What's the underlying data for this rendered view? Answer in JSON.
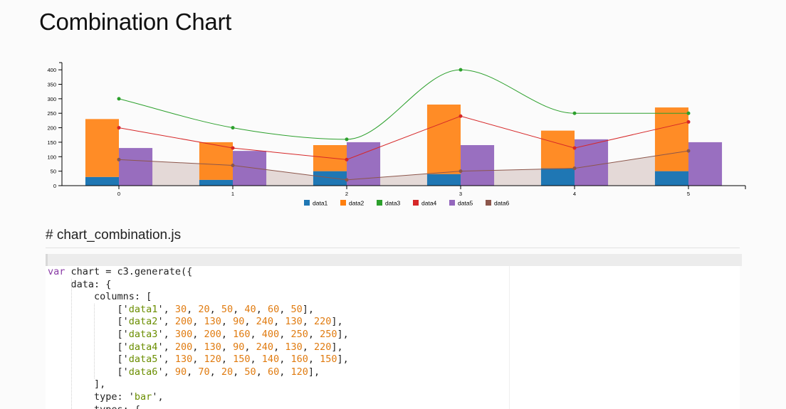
{
  "page": {
    "title": "Combination Chart",
    "section_heading": "# chart_combination.js"
  },
  "chart_data": {
    "type": "bar",
    "x": [
      0,
      1,
      2,
      3,
      4,
      5
    ],
    "ylim": [
      0,
      420
    ],
    "yticks": [
      0,
      50,
      100,
      150,
      200,
      250,
      300,
      350,
      400
    ],
    "grid": false,
    "legend_position": "bottom",
    "series": [
      {
        "name": "data1",
        "render": "bar",
        "color": "#1f77b4",
        "values": [
          30,
          20,
          50,
          40,
          60,
          50
        ]
      },
      {
        "name": "data2",
        "render": "bar",
        "color": "#ff7f0e",
        "values": [
          200,
          130,
          90,
          240,
          130,
          220
        ]
      },
      {
        "name": "data3",
        "render": "spline",
        "color": "#2ca02c",
        "values": [
          300,
          200,
          160,
          400,
          250,
          250
        ]
      },
      {
        "name": "data4",
        "render": "line",
        "color": "#d62728",
        "values": [
          200,
          130,
          90,
          240,
          130,
          220
        ]
      },
      {
        "name": "data5",
        "render": "bar",
        "color": "#9467bd",
        "values": [
          130,
          120,
          150,
          140,
          160,
          150
        ]
      },
      {
        "name": "data6",
        "render": "area",
        "color": "#8c564b",
        "values": [
          90,
          70,
          20,
          50,
          60,
          120
        ]
      }
    ],
    "stacked_groups": [
      [
        "data1",
        "data2"
      ]
    ]
  },
  "code": {
    "lines": [
      [
        {
          "t": "var",
          "c": "kw"
        },
        {
          "t": " chart = c3.generate({"
        }
      ],
      [
        {
          "t": "    data: {"
        }
      ],
      [
        {
          "t": "        columns: ["
        }
      ],
      [
        {
          "t": "            ['"
        },
        {
          "t": "data1",
          "c": "str"
        },
        {
          "t": "', "
        },
        {
          "t": "30",
          "c": "num"
        },
        {
          "t": ", "
        },
        {
          "t": "20",
          "c": "num"
        },
        {
          "t": ", "
        },
        {
          "t": "50",
          "c": "num"
        },
        {
          "t": ", "
        },
        {
          "t": "40",
          "c": "num"
        },
        {
          "t": ", "
        },
        {
          "t": "60",
          "c": "num"
        },
        {
          "t": ", "
        },
        {
          "t": "50",
          "c": "num"
        },
        {
          "t": "],"
        }
      ],
      [
        {
          "t": "            ['"
        },
        {
          "t": "data2",
          "c": "str"
        },
        {
          "t": "', "
        },
        {
          "t": "200",
          "c": "num"
        },
        {
          "t": ", "
        },
        {
          "t": "130",
          "c": "num"
        },
        {
          "t": ", "
        },
        {
          "t": "90",
          "c": "num"
        },
        {
          "t": ", "
        },
        {
          "t": "240",
          "c": "num"
        },
        {
          "t": ", "
        },
        {
          "t": "130",
          "c": "num"
        },
        {
          "t": ", "
        },
        {
          "t": "220",
          "c": "num"
        },
        {
          "t": "],"
        }
      ],
      [
        {
          "t": "            ['"
        },
        {
          "t": "data3",
          "c": "str"
        },
        {
          "t": "', "
        },
        {
          "t": "300",
          "c": "num"
        },
        {
          "t": ", "
        },
        {
          "t": "200",
          "c": "num"
        },
        {
          "t": ", "
        },
        {
          "t": "160",
          "c": "num"
        },
        {
          "t": ", "
        },
        {
          "t": "400",
          "c": "num"
        },
        {
          "t": ", "
        },
        {
          "t": "250",
          "c": "num"
        },
        {
          "t": ", "
        },
        {
          "t": "250",
          "c": "num"
        },
        {
          "t": "],"
        }
      ],
      [
        {
          "t": "            ['"
        },
        {
          "t": "data4",
          "c": "str"
        },
        {
          "t": "', "
        },
        {
          "t": "200",
          "c": "num"
        },
        {
          "t": ", "
        },
        {
          "t": "130",
          "c": "num"
        },
        {
          "t": ", "
        },
        {
          "t": "90",
          "c": "num"
        },
        {
          "t": ", "
        },
        {
          "t": "240",
          "c": "num"
        },
        {
          "t": ", "
        },
        {
          "t": "130",
          "c": "num"
        },
        {
          "t": ", "
        },
        {
          "t": "220",
          "c": "num"
        },
        {
          "t": "],"
        }
      ],
      [
        {
          "t": "            ['"
        },
        {
          "t": "data5",
          "c": "str"
        },
        {
          "t": "', "
        },
        {
          "t": "130",
          "c": "num"
        },
        {
          "t": ", "
        },
        {
          "t": "120",
          "c": "num"
        },
        {
          "t": ", "
        },
        {
          "t": "150",
          "c": "num"
        },
        {
          "t": ", "
        },
        {
          "t": "140",
          "c": "num"
        },
        {
          "t": ", "
        },
        {
          "t": "160",
          "c": "num"
        },
        {
          "t": ", "
        },
        {
          "t": "150",
          "c": "num"
        },
        {
          "t": "],"
        }
      ],
      [
        {
          "t": "            ['"
        },
        {
          "t": "data6",
          "c": "str"
        },
        {
          "t": "', "
        },
        {
          "t": "90",
          "c": "num"
        },
        {
          "t": ", "
        },
        {
          "t": "70",
          "c": "num"
        },
        {
          "t": ", "
        },
        {
          "t": "20",
          "c": "num"
        },
        {
          "t": ", "
        },
        {
          "t": "50",
          "c": "num"
        },
        {
          "t": ", "
        },
        {
          "t": "60",
          "c": "num"
        },
        {
          "t": ", "
        },
        {
          "t": "120",
          "c": "num"
        },
        {
          "t": "],"
        }
      ],
      [
        {
          "t": "        ],"
        }
      ],
      [
        {
          "t": "        type: '"
        },
        {
          "t": "bar",
          "c": "str"
        },
        {
          "t": "',"
        }
      ],
      [
        {
          "t": "        types: {"
        }
      ]
    ]
  }
}
